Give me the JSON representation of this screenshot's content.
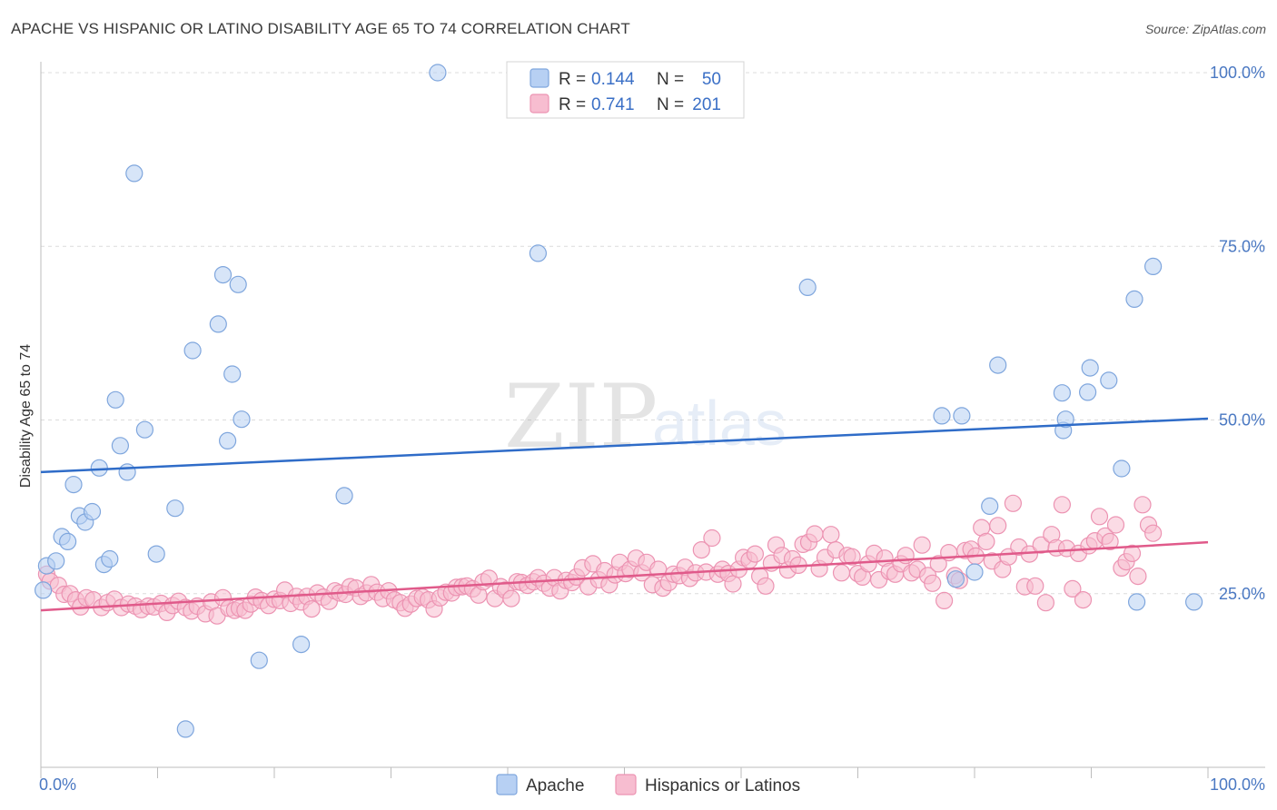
{
  "title": "APACHE VS HISPANIC OR LATINO DISABILITY AGE 65 TO 74 CORRELATION CHART",
  "source": "Source: ZipAtlas.com",
  "watermark": {
    "zip": "ZIP",
    "atlas": "atlas"
  },
  "colors": {
    "apache_fill": "#b7d0f3",
    "apache_stroke": "#7fa6dd",
    "apache_line": "#2f6cc8",
    "hispanic_fill": "#f7bdd0",
    "hispanic_stroke": "#ec93b2",
    "hispanic_line": "#e05a8a",
    "grid": "#dcdcdc",
    "tick_text": "#4a78c2"
  },
  "legend": {
    "rows": [
      {
        "r_label": "R =",
        "r_value": "0.144",
        "n_label": "N =",
        "n_value": "50"
      },
      {
        "r_label": "R =",
        "r_value": "0.741",
        "n_label": "N =",
        "n_value": "201"
      }
    ]
  },
  "chart_data": {
    "type": "scatter",
    "title": "APACHE VS HISPANIC OR LATINO DISABILITY AGE 65 TO 74 CORRELATION CHART",
    "xlabel": "",
    "ylabel": "Disability Age 65 to 74",
    "xlim": [
      0,
      100
    ],
    "ylim": [
      0,
      102
    ],
    "x_tick_labels": [
      "0.0%",
      "100.0%"
    ],
    "y_ticks": [
      25,
      50,
      75,
      100
    ],
    "y_tick_labels": [
      "25.0%",
      "50.0%",
      "75.0%",
      "100.0%"
    ],
    "grid": true,
    "legend_position": "top-center",
    "series": [
      {
        "name": "Apache",
        "stats": {
          "R": 0.144,
          "N": 50
        },
        "trend": {
          "x": [
            0,
            100
          ],
          "y": [
            42.5,
            50.2
          ]
        },
        "points": [
          [
            0.2,
            25.5
          ],
          [
            0.5,
            29.0
          ],
          [
            1.3,
            29.7
          ],
          [
            1.8,
            33.2
          ],
          [
            2.3,
            32.5
          ],
          [
            2.8,
            40.7
          ],
          [
            3.3,
            36.2
          ],
          [
            3.8,
            35.3
          ],
          [
            4.4,
            36.8
          ],
          [
            5.0,
            43.1
          ],
          [
            5.4,
            29.2
          ],
          [
            5.9,
            30.0
          ],
          [
            6.4,
            52.9
          ],
          [
            6.8,
            46.3
          ],
          [
            7.4,
            42.5
          ],
          [
            8.0,
            85.5
          ],
          [
            8.9,
            48.6
          ],
          [
            9.9,
            30.7
          ],
          [
            11.5,
            37.3
          ],
          [
            12.4,
            5.5
          ],
          [
            13.0,
            60.0
          ],
          [
            15.2,
            63.8
          ],
          [
            15.6,
            70.9
          ],
          [
            16.0,
            47.0
          ],
          [
            16.4,
            56.6
          ],
          [
            16.9,
            69.5
          ],
          [
            17.2,
            50.1
          ],
          [
            18.7,
            15.4
          ],
          [
            22.3,
            17.7
          ],
          [
            26.0,
            39.1
          ],
          [
            34.0,
            100.0
          ],
          [
            42.6,
            74.0
          ],
          [
            65.7,
            69.1
          ],
          [
            77.2,
            50.6
          ],
          [
            78.4,
            27.1
          ],
          [
            78.9,
            50.6
          ],
          [
            80.0,
            28.1
          ],
          [
            81.3,
            37.6
          ],
          [
            82.0,
            57.9
          ],
          [
            87.5,
            53.9
          ],
          [
            87.6,
            48.5
          ],
          [
            87.8,
            50.1
          ],
          [
            89.7,
            54.0
          ],
          [
            89.9,
            57.5
          ],
          [
            91.5,
            55.7
          ],
          [
            92.6,
            43.0
          ],
          [
            93.7,
            67.4
          ],
          [
            93.9,
            23.8
          ],
          [
            95.3,
            72.1
          ],
          [
            98.8,
            23.8
          ]
        ]
      },
      {
        "name": "Hispanics or Latinos",
        "stats": {
          "R": 0.741,
          "N": 201
        },
        "trend": {
          "x": [
            0,
            100
          ],
          "y": [
            22.6,
            32.4
          ]
        },
        "points": [
          [
            0.5,
            27.8
          ],
          [
            0.8,
            26.8
          ],
          [
            1.5,
            26.2
          ],
          [
            2.0,
            24.9
          ],
          [
            2.5,
            25.0
          ],
          [
            3.0,
            24.1
          ],
          [
            3.4,
            23.1
          ],
          [
            3.9,
            24.4
          ],
          [
            4.5,
            24.1
          ],
          [
            5.2,
            23.0
          ],
          [
            5.7,
            23.7
          ],
          [
            6.3,
            24.2
          ],
          [
            6.9,
            23.0
          ],
          [
            7.5,
            23.5
          ],
          [
            8.1,
            23.2
          ],
          [
            8.6,
            22.7
          ],
          [
            9.2,
            23.2
          ],
          [
            9.7,
            23.1
          ],
          [
            10.3,
            23.6
          ],
          [
            10.8,
            22.3
          ],
          [
            11.3,
            23.3
          ],
          [
            11.8,
            23.9
          ],
          [
            12.4,
            23.0
          ],
          [
            12.9,
            22.5
          ],
          [
            13.4,
            23.2
          ],
          [
            14.1,
            22.1
          ],
          [
            14.6,
            23.8
          ],
          [
            15.1,
            21.8
          ],
          [
            15.6,
            24.4
          ],
          [
            16.1,
            22.9
          ],
          [
            16.6,
            22.6
          ],
          [
            17.0,
            22.9
          ],
          [
            17.5,
            22.6
          ],
          [
            18.0,
            23.5
          ],
          [
            18.4,
            24.5
          ],
          [
            18.9,
            24.0
          ],
          [
            19.5,
            23.3
          ],
          [
            20.0,
            24.2
          ],
          [
            20.5,
            24.0
          ],
          [
            20.9,
            25.5
          ],
          [
            21.4,
            23.6
          ],
          [
            21.9,
            24.6
          ],
          [
            22.3,
            23.8
          ],
          [
            22.8,
            24.6
          ],
          [
            23.2,
            22.8
          ],
          [
            23.7,
            25.1
          ],
          [
            24.2,
            24.5
          ],
          [
            24.7,
            23.9
          ],
          [
            25.2,
            25.4
          ],
          [
            25.6,
            25.1
          ],
          [
            26.1,
            24.9
          ],
          [
            26.5,
            26.0
          ],
          [
            27.0,
            25.8
          ],
          [
            27.4,
            24.6
          ],
          [
            27.9,
            25.1
          ],
          [
            28.3,
            26.3
          ],
          [
            28.8,
            25.2
          ],
          [
            29.3,
            24.3
          ],
          [
            29.8,
            25.4
          ],
          [
            30.3,
            24.1
          ],
          [
            30.8,
            23.7
          ],
          [
            31.2,
            22.9
          ],
          [
            31.7,
            23.5
          ],
          [
            32.2,
            24.3
          ],
          [
            32.7,
            24.5
          ],
          [
            33.2,
            24.1
          ],
          [
            33.7,
            22.8
          ],
          [
            34.2,
            24.4
          ],
          [
            34.7,
            25.2
          ],
          [
            35.2,
            25.1
          ],
          [
            35.6,
            25.9
          ],
          [
            36.1,
            26.0
          ],
          [
            36.5,
            26.1
          ],
          [
            37.0,
            25.7
          ],
          [
            37.5,
            24.8
          ],
          [
            37.9,
            26.7
          ],
          [
            38.4,
            27.2
          ],
          [
            38.9,
            24.3
          ],
          [
            39.4,
            26.0
          ],
          [
            39.8,
            25.5
          ],
          [
            40.3,
            24.3
          ],
          [
            40.8,
            26.7
          ],
          [
            41.2,
            26.6
          ],
          [
            41.7,
            26.2
          ],
          [
            42.2,
            26.7
          ],
          [
            42.6,
            27.3
          ],
          [
            43.1,
            26.5
          ],
          [
            43.6,
            25.8
          ],
          [
            44.0,
            27.3
          ],
          [
            44.5,
            25.4
          ],
          [
            45.0,
            26.9
          ],
          [
            45.5,
            26.6
          ],
          [
            45.9,
            27.4
          ],
          [
            46.4,
            28.7
          ],
          [
            46.9,
            26.0
          ],
          [
            47.3,
            29.3
          ],
          [
            47.8,
            27.0
          ],
          [
            48.3,
            28.3
          ],
          [
            48.7,
            26.3
          ],
          [
            49.2,
            27.7
          ],
          [
            49.6,
            29.5
          ],
          [
            50.1,
            27.9
          ],
          [
            50.5,
            28.5
          ],
          [
            51.0,
            30.1
          ],
          [
            51.5,
            28.0
          ],
          [
            51.9,
            29.5
          ],
          [
            52.4,
            26.3
          ],
          [
            52.9,
            28.5
          ],
          [
            53.3,
            25.8
          ],
          [
            53.8,
            26.6
          ],
          [
            54.2,
            27.8
          ],
          [
            54.7,
            27.6
          ],
          [
            55.2,
            28.8
          ],
          [
            55.6,
            27.2
          ],
          [
            56.1,
            28.0
          ],
          [
            56.6,
            31.3
          ],
          [
            57.0,
            28.1
          ],
          [
            57.5,
            33.0
          ],
          [
            58.0,
            27.8
          ],
          [
            58.4,
            28.5
          ],
          [
            58.9,
            27.9
          ],
          [
            59.3,
            26.4
          ],
          [
            59.8,
            28.5
          ],
          [
            60.2,
            30.2
          ],
          [
            60.7,
            29.8
          ],
          [
            61.2,
            30.7
          ],
          [
            61.6,
            27.5
          ],
          [
            62.1,
            26.1
          ],
          [
            62.6,
            29.4
          ],
          [
            63.0,
            32.0
          ],
          [
            63.5,
            30.5
          ],
          [
            64.0,
            28.4
          ],
          [
            64.4,
            30.0
          ],
          [
            64.9,
            29.1
          ],
          [
            65.3,
            32.1
          ],
          [
            65.8,
            32.4
          ],
          [
            66.3,
            33.6
          ],
          [
            66.7,
            28.6
          ],
          [
            67.2,
            30.2
          ],
          [
            67.7,
            33.5
          ],
          [
            68.1,
            31.3
          ],
          [
            68.6,
            28.0
          ],
          [
            69.1,
            30.5
          ],
          [
            69.5,
            30.3
          ],
          [
            70.0,
            27.9
          ],
          [
            70.4,
            27.4
          ],
          [
            70.9,
            29.3
          ],
          [
            71.4,
            30.8
          ],
          [
            71.8,
            27.0
          ],
          [
            72.3,
            30.1
          ],
          [
            72.7,
            28.2
          ],
          [
            73.2,
            27.8
          ],
          [
            73.7,
            29.3
          ],
          [
            74.1,
            30.5
          ],
          [
            74.6,
            28.0
          ],
          [
            75.1,
            28.5
          ],
          [
            75.5,
            32.0
          ],
          [
            76.0,
            27.6
          ],
          [
            76.4,
            26.5
          ],
          [
            76.9,
            29.3
          ],
          [
            77.4,
            24.0
          ],
          [
            77.8,
            30.9
          ],
          [
            78.3,
            27.6
          ],
          [
            78.7,
            26.9
          ],
          [
            79.2,
            31.2
          ],
          [
            79.7,
            31.4
          ],
          [
            80.1,
            30.4
          ],
          [
            80.6,
            34.5
          ],
          [
            81.0,
            32.5
          ],
          [
            81.5,
            29.7
          ],
          [
            82.0,
            34.8
          ],
          [
            82.4,
            28.5
          ],
          [
            82.9,
            30.3
          ],
          [
            83.3,
            38.0
          ],
          [
            83.8,
            31.7
          ],
          [
            84.3,
            26.0
          ],
          [
            84.7,
            30.7
          ],
          [
            85.2,
            26.1
          ],
          [
            85.7,
            32.0
          ],
          [
            86.1,
            23.7
          ],
          [
            86.6,
            33.5
          ],
          [
            87.0,
            31.6
          ],
          [
            87.5,
            37.8
          ],
          [
            87.9,
            31.5
          ],
          [
            88.4,
            25.7
          ],
          [
            88.9,
            30.8
          ],
          [
            89.3,
            24.1
          ],
          [
            89.8,
            31.9
          ],
          [
            90.3,
            32.6
          ],
          [
            90.7,
            36.1
          ],
          [
            91.2,
            33.3
          ],
          [
            91.6,
            32.5
          ],
          [
            92.1,
            34.9
          ],
          [
            92.6,
            28.7
          ],
          [
            93.0,
            29.6
          ],
          [
            93.5,
            30.8
          ],
          [
            94.0,
            27.5
          ],
          [
            94.4,
            37.8
          ],
          [
            94.9,
            34.9
          ],
          [
            95.3,
            33.7
          ]
        ]
      }
    ]
  },
  "bottom_legend": [
    {
      "label": "Apache"
    },
    {
      "label": "Hispanics or Latinos"
    }
  ]
}
